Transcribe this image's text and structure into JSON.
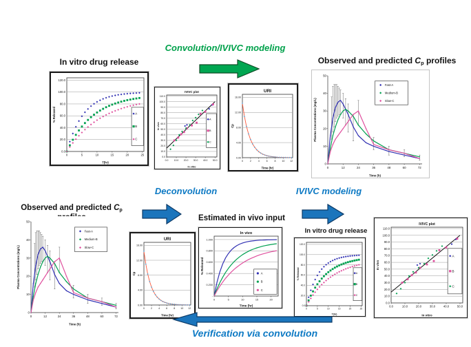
{
  "palette": {
    "blue": "#2f2fb2",
    "green": "#00a050",
    "pink": "#e0509e",
    "red": "#ff5a3c",
    "lightblue": "#58a6d8",
    "arrowGreen": "#00a651",
    "arrowBlue": "#1b75bc",
    "textGreen": "#00a14b",
    "textBlue": "#0e7ac4",
    "errorbar": "#666666",
    "trend": "#111111"
  },
  "labels": {
    "invitro_top": "In vitro drug release",
    "invitro_bottom": "In vitro drug release",
    "estimated_input": "Estimated in vivo input",
    "cp_title_pre": "Observed and predicted ",
    "cp_title_sym": "C",
    "cp_title_sub": "p",
    "cp_title_post": " profiles"
  },
  "flow": {
    "convolution": "Convolution/IVIVC modeling",
    "deconvolution": "Deconvolution",
    "ivivc": "IVIVC modeling",
    "verification": "Verification via convolution"
  },
  "chart_data": [
    {
      "id": "invitro",
      "type": "scatter",
      "title": "",
      "xlabel": "T(hr)",
      "ylabel": "% Released",
      "xlim": [
        0,
        25.5
      ],
      "ylim": [
        0,
        124
      ],
      "xticks": [
        [
          0,
          "0"
        ],
        [
          5,
          "5"
        ],
        [
          10,
          "10"
        ],
        [
          15,
          "15"
        ],
        [
          20,
          "20"
        ],
        [
          25,
          "25"
        ]
      ],
      "yticks": [
        [
          0,
          "0.0"
        ],
        [
          20,
          "20.0"
        ],
        [
          40,
          "40.0"
        ],
        [
          60,
          "60.0"
        ],
        [
          80,
          "80.0"
        ],
        [
          100,
          "100.0"
        ],
        [
          120,
          "120.0"
        ]
      ],
      "legend": [
        {
          "label": "A",
          "color": "blue",
          "swatch": "diamond"
        },
        {
          "label": "B",
          "color": "green",
          "swatch": "square"
        },
        {
          "label": "C",
          "color": "pink",
          "swatch": "diamond"
        }
      ],
      "series": [
        {
          "name": "A",
          "color": "blue",
          "marker": "diamond",
          "x": [
            0,
            1,
            2,
            3,
            4,
            5,
            6,
            7,
            8,
            9,
            10,
            11,
            12,
            13,
            14,
            15,
            16,
            17,
            18,
            19,
            20,
            21,
            22,
            23,
            24
          ],
          "y": [
            0,
            16.5,
            30.2,
            41.6,
            51.2,
            59.3,
            66.0,
            71.6,
            76.3,
            80.2,
            83.5,
            86.2,
            88.5,
            90.4,
            92.0,
            93.3,
            94.4,
            95.3,
            96.1,
            96.7,
            97.3,
            97.7,
            98.1,
            98.4,
            98.7
          ]
        },
        {
          "name": "B",
          "color": "green",
          "marker": "square",
          "x": [
            0,
            1,
            2,
            3,
            4,
            5,
            6,
            7,
            8,
            9,
            10,
            11,
            12,
            13,
            14,
            15,
            16,
            17,
            18,
            19,
            20,
            21,
            22,
            23,
            24
          ],
          "y": [
            0,
            10.4,
            19.7,
            28.0,
            35.4,
            42.0,
            47.8,
            53.1,
            57.7,
            61.9,
            65.6,
            68.9,
            71.8,
            74.5,
            76.8,
            78.9,
            80.7,
            82.4,
            83.9,
            85.2,
            86.4,
            87.4,
            88.4,
            89.2,
            90.0
          ]
        },
        {
          "name": "C",
          "color": "pink",
          "marker": "diamond",
          "x": [
            0,
            1,
            2,
            3,
            4,
            5,
            6,
            7,
            8,
            9,
            10,
            11,
            12,
            13,
            14,
            15,
            16,
            17,
            18,
            19,
            20,
            21,
            22,
            23,
            24
          ],
          "y": [
            0,
            7.5,
            14.4,
            20.7,
            26.5,
            31.9,
            36.8,
            41.3,
            45.4,
            49.2,
            52.7,
            55.9,
            58.8,
            61.5,
            64.0,
            66.3,
            68.4,
            70.3,
            72.1,
            73.7,
            75.2,
            76.6,
            77.8,
            79.0,
            80.0
          ]
        }
      ]
    },
    {
      "id": "ivivc",
      "type": "scatter",
      "title": "IVIVC plot",
      "xlabel": "In vitro",
      "ylabel": "In vivo",
      "xlim": [
        0,
        52
      ],
      "ylim": [
        0,
        112
      ],
      "xticks": [
        [
          0,
          "0.0"
        ],
        [
          10,
          "10.0"
        ],
        [
          20,
          "20.0"
        ],
        [
          30,
          "30.0"
        ],
        [
          40,
          "40.0"
        ],
        [
          50,
          "50.0"
        ]
      ],
      "yticks": [
        [
          0,
          "0.0"
        ],
        [
          10,
          "10.0"
        ],
        [
          20,
          "20.0"
        ],
        [
          30,
          "30.0"
        ],
        [
          40,
          "40.0"
        ],
        [
          50,
          "50.0"
        ],
        [
          60,
          "60.0"
        ],
        [
          70,
          "70.0"
        ],
        [
          80,
          "80.0"
        ],
        [
          90,
          "90.0"
        ],
        [
          100,
          "100.0"
        ],
        [
          110,
          "110.0"
        ]
      ],
      "trend": [
        [
          0,
          16
        ],
        [
          50,
          100
        ]
      ],
      "legend": [
        {
          "label": "A",
          "color": "blue",
          "swatch": "diamond"
        },
        {
          "label": "B",
          "color": "pink",
          "swatch": "square"
        },
        {
          "label": "C",
          "color": "green",
          "swatch": "diamond"
        }
      ],
      "series": [
        {
          "name": "A",
          "color": "blue",
          "marker": "diamond",
          "points": [
            [
              19,
              56
            ],
            [
              21,
              58
            ],
            [
              44,
              87
            ],
            [
              47,
              94
            ]
          ]
        },
        {
          "name": "B",
          "color": "pink",
          "marker": "square",
          "points": [
            [
              8,
              30
            ],
            [
              12,
              35
            ],
            [
              15,
              41
            ],
            [
              18,
              45
            ],
            [
              21,
              52
            ],
            [
              26,
              57
            ],
            [
              31,
              62
            ],
            [
              35,
              78
            ],
            [
              40,
              82
            ],
            [
              48,
              95
            ]
          ]
        },
        {
          "name": "C",
          "color": "green",
          "marker": "diamond",
          "points": [
            [
              4,
              14
            ],
            [
              7,
              21
            ],
            [
              10,
              30
            ],
            [
              13,
              40
            ],
            [
              16,
              46
            ],
            [
              20,
              52
            ],
            [
              24,
              58
            ],
            [
              27,
              66
            ],
            [
              30,
              71
            ],
            [
              33,
              77
            ],
            [
              37,
              84
            ]
          ]
        }
      ]
    },
    {
      "id": "uri",
      "type": "line",
      "title": "URI",
      "xlabel": "Time (hr)",
      "ylabel": "Cp",
      "xlim": [
        0,
        12.3
      ],
      "ylim": [
        0,
        16.8
      ],
      "xticks": [
        [
          0,
          "0"
        ],
        [
          2,
          "2"
        ],
        [
          4,
          "4"
        ],
        [
          6,
          "6"
        ],
        [
          8,
          "8"
        ],
        [
          10,
          "10"
        ],
        [
          12,
          "12"
        ]
      ],
      "yticks": [
        [
          0,
          "0.00"
        ],
        [
          4,
          "4.00"
        ],
        [
          8,
          "8.00"
        ],
        [
          12,
          "12.00"
        ],
        [
          16,
          "16.00"
        ]
      ],
      "legend": [],
      "series": [
        {
          "name": "URI",
          "color": "red",
          "line": true,
          "lw": 0.9,
          "marker": "diamond",
          "mcolor": "lightblue",
          "ms": 1.1,
          "x": [
            0,
            0.5,
            1,
            1.5,
            2,
            2.5,
            3,
            3.5,
            4,
            4.5,
            5,
            5.5,
            6,
            6.5,
            7,
            7.5,
            8,
            8.5,
            9,
            9.5,
            10,
            10.5,
            11,
            11.5,
            12
          ],
          "y": [
            14.4,
            10.94,
            8.31,
            6.31,
            4.79,
            3.64,
            2.77,
            2.1,
            1.6,
            1.21,
            0.92,
            0.7,
            0.53,
            0.4,
            0.31,
            0.23,
            0.18,
            0.13,
            0.1,
            0.08,
            0.06,
            0.05,
            0.03,
            0.03,
            0.02
          ]
        }
      ]
    },
    {
      "id": "cp",
      "type": "line",
      "title": "",
      "xlabel": "Time (h)",
      "ylabel": "Plasma Concentrations (mg/L)",
      "xlim": [
        0,
        74
      ],
      "ylim": [
        0,
        50
      ],
      "xticks": [
        [
          0,
          "0"
        ],
        [
          12,
          "12"
        ],
        [
          24,
          "24"
        ],
        [
          36,
          "36"
        ],
        [
          48,
          "48"
        ],
        [
          60,
          "60"
        ],
        [
          72,
          "72"
        ]
      ],
      "yticks": [
        [
          0,
          "0"
        ],
        [
          10,
          "10"
        ],
        [
          20,
          "20"
        ],
        [
          30,
          "30"
        ],
        [
          40,
          "40"
        ],
        [
          50,
          "50"
        ]
      ],
      "errorbars": [
        [
          3,
          14,
          38
        ],
        [
          4,
          18,
          44
        ],
        [
          5,
          21,
          45
        ],
        [
          6,
          24,
          45
        ],
        [
          7,
          26,
          45
        ],
        [
          8,
          27,
          44
        ],
        [
          9,
          28,
          43
        ],
        [
          10,
          28,
          42
        ],
        [
          12,
          26,
          40
        ],
        [
          14,
          22,
          37
        ],
        [
          16,
          18,
          34
        ],
        [
          20,
          13,
          28
        ],
        [
          24,
          22,
          36
        ],
        [
          36,
          8,
          15
        ],
        [
          48,
          5,
          10
        ],
        [
          60,
          4,
          8
        ],
        [
          72,
          2,
          5
        ]
      ],
      "legend": [
        {
          "label": "Fast-A",
          "color": "blue",
          "swatch": "diamond"
        },
        {
          "label": "Medium-B",
          "color": "green",
          "swatch": "diamond"
        },
        {
          "label": "Slow-C",
          "color": "pink",
          "swatch": "diamond"
        }
      ],
      "series": [
        {
          "name": "Fast-A",
          "color": "blue",
          "line": true,
          "lw": 1.2,
          "marker": "dot",
          "ms": 0.7,
          "x": [
            0,
            2,
            4,
            6,
            8,
            10,
            12,
            14,
            16,
            20,
            24,
            30,
            36,
            48,
            60,
            72
          ],
          "y": [
            0,
            16,
            26,
            32,
            35,
            36,
            34,
            31,
            28,
            21,
            16,
            12,
            10,
            7,
            5,
            3
          ]
        },
        {
          "name": "Medium-B",
          "color": "green",
          "line": true,
          "lw": 1.2,
          "marker": "dot",
          "ms": 0.7,
          "x": [
            0,
            2,
            4,
            6,
            8,
            10,
            12,
            14,
            16,
            20,
            24,
            30,
            36,
            48,
            60,
            72
          ],
          "y": [
            0,
            9,
            16,
            21,
            25,
            28,
            30,
            31,
            30,
            27,
            22,
            17,
            13,
            8,
            6,
            4
          ]
        },
        {
          "name": "Slow-C",
          "color": "pink",
          "line": true,
          "lw": 1.2,
          "marker": "dot",
          "ms": 0.7,
          "x": [
            0,
            2,
            4,
            6,
            8,
            10,
            12,
            14,
            16,
            20,
            24,
            30,
            36,
            48,
            60,
            72
          ],
          "y": [
            0,
            7,
            11,
            14,
            16,
            18,
            20,
            22,
            24,
            28,
            30,
            20,
            11,
            8,
            6,
            3
          ]
        }
      ]
    },
    {
      "id": "invivo",
      "type": "line",
      "title": "In vivo",
      "xlabel": "Time (hr)",
      "ylabel": "% Released",
      "xlim": [
        0,
        22.5
      ],
      "ylim": [
        0,
        1.06
      ],
      "xticks": [
        [
          0,
          "0"
        ],
        [
          5,
          "5"
        ],
        [
          10,
          "10"
        ],
        [
          15,
          "15"
        ],
        [
          20,
          "20"
        ]
      ],
      "yticks": [
        [
          0,
          "-"
        ],
        [
          0.2,
          "0.200"
        ],
        [
          0.4,
          "0.400"
        ],
        [
          0.6,
          "0.600"
        ],
        [
          0.8,
          "0.800"
        ],
        [
          1,
          "1.000"
        ]
      ],
      "legend": [
        {
          "label": "A",
          "color": "blue",
          "swatch": "line"
        },
        {
          "label": "B",
          "color": "green",
          "swatch": "line"
        },
        {
          "label": "C",
          "color": "pink",
          "swatch": "line"
        }
      ],
      "series": [
        {
          "name": "A",
          "color": "blue",
          "line": true,
          "lw": 1.2,
          "x": [
            0,
            1,
            2,
            3,
            4,
            5,
            6,
            7,
            8,
            9,
            10,
            11,
            12,
            13,
            14,
            15,
            16,
            17,
            18,
            19,
            20,
            21,
            22
          ],
          "y": [
            0,
            0.244,
            0.429,
            0.568,
            0.674,
            0.753,
            0.814,
            0.859,
            0.894,
            0.92,
            0.939,
            0.954,
            0.965,
            0.974,
            0.98,
            0.985,
            0.989,
            0.991,
            0.993,
            0.995,
            0.996,
            0.997,
            0.998
          ]
        },
        {
          "name": "B",
          "color": "green",
          "line": true,
          "lw": 1.2,
          "x": [
            0,
            1,
            2,
            3,
            4,
            5,
            6,
            7,
            8,
            9,
            10,
            11,
            12,
            13,
            14,
            15,
            16,
            17,
            18,
            19,
            20,
            21,
            22
          ],
          "y": [
            0,
            0.127,
            0.237,
            0.333,
            0.417,
            0.49,
            0.553,
            0.608,
            0.656,
            0.697,
            0.733,
            0.764,
            0.791,
            0.815,
            0.835,
            0.853,
            0.868,
            0.882,
            0.893,
            0.903,
            0.912,
            0.92,
            0.926
          ]
        },
        {
          "name": "C",
          "color": "pink",
          "line": true,
          "lw": 1.2,
          "x": [
            0,
            1,
            2,
            3,
            4,
            5,
            6,
            7,
            8,
            9,
            10,
            11,
            12,
            13,
            14,
            15,
            16,
            17,
            18,
            19,
            20,
            21,
            22
          ],
          "y": [
            0,
            0.092,
            0.174,
            0.247,
            0.313,
            0.371,
            0.424,
            0.471,
            0.513,
            0.551,
            0.585,
            0.616,
            0.643,
            0.668,
            0.69,
            0.71,
            0.728,
            0.744,
            0.758,
            0.771,
            0.783,
            0.793,
            0.803
          ]
        }
      ]
    }
  ]
}
